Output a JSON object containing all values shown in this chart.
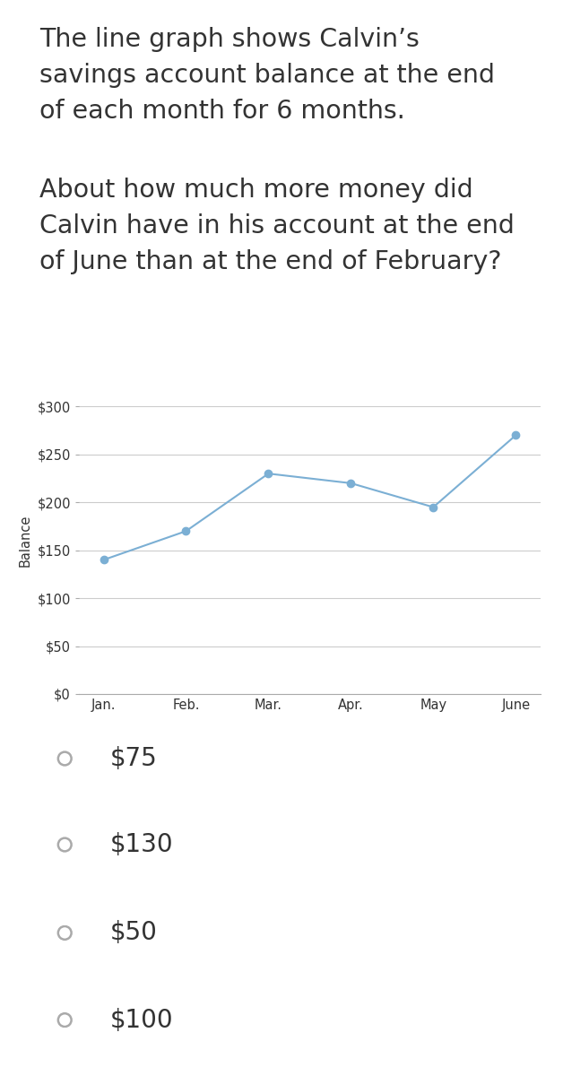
{
  "question_line1": "The line graph shows Calvin’s",
  "question_line2": "savings account balance at the end",
  "question_line3": "of each month for 6 months.",
  "question_line4": "About how much more money did",
  "question_line5": "Calvin have in his account at the end",
  "question_line6": "of June than at the end of February?",
  "months": [
    "Jan.",
    "Feb.",
    "Mar.",
    "Apr.",
    "May",
    "June"
  ],
  "balances": [
    140,
    170,
    230,
    220,
    195,
    270
  ],
  "ylabel": "Balance",
  "yticks": [
    0,
    50,
    100,
    150,
    200,
    250,
    300
  ],
  "ytick_labels": [
    "$0",
    "$50",
    "$100",
    "$150",
    "$200",
    "$250",
    "$300"
  ],
  "ylim": [
    0,
    320
  ],
  "line_color": "#7bafd4",
  "marker_color": "#7bafd4",
  "grid_color": "#cccccc",
  "bg_color": "#ffffff",
  "text_color": "#333333",
  "choices": [
    "$75",
    "$130",
    "$50",
    "$100"
  ],
  "choice_fontsize": 20,
  "question_fontsize": 20.5
}
